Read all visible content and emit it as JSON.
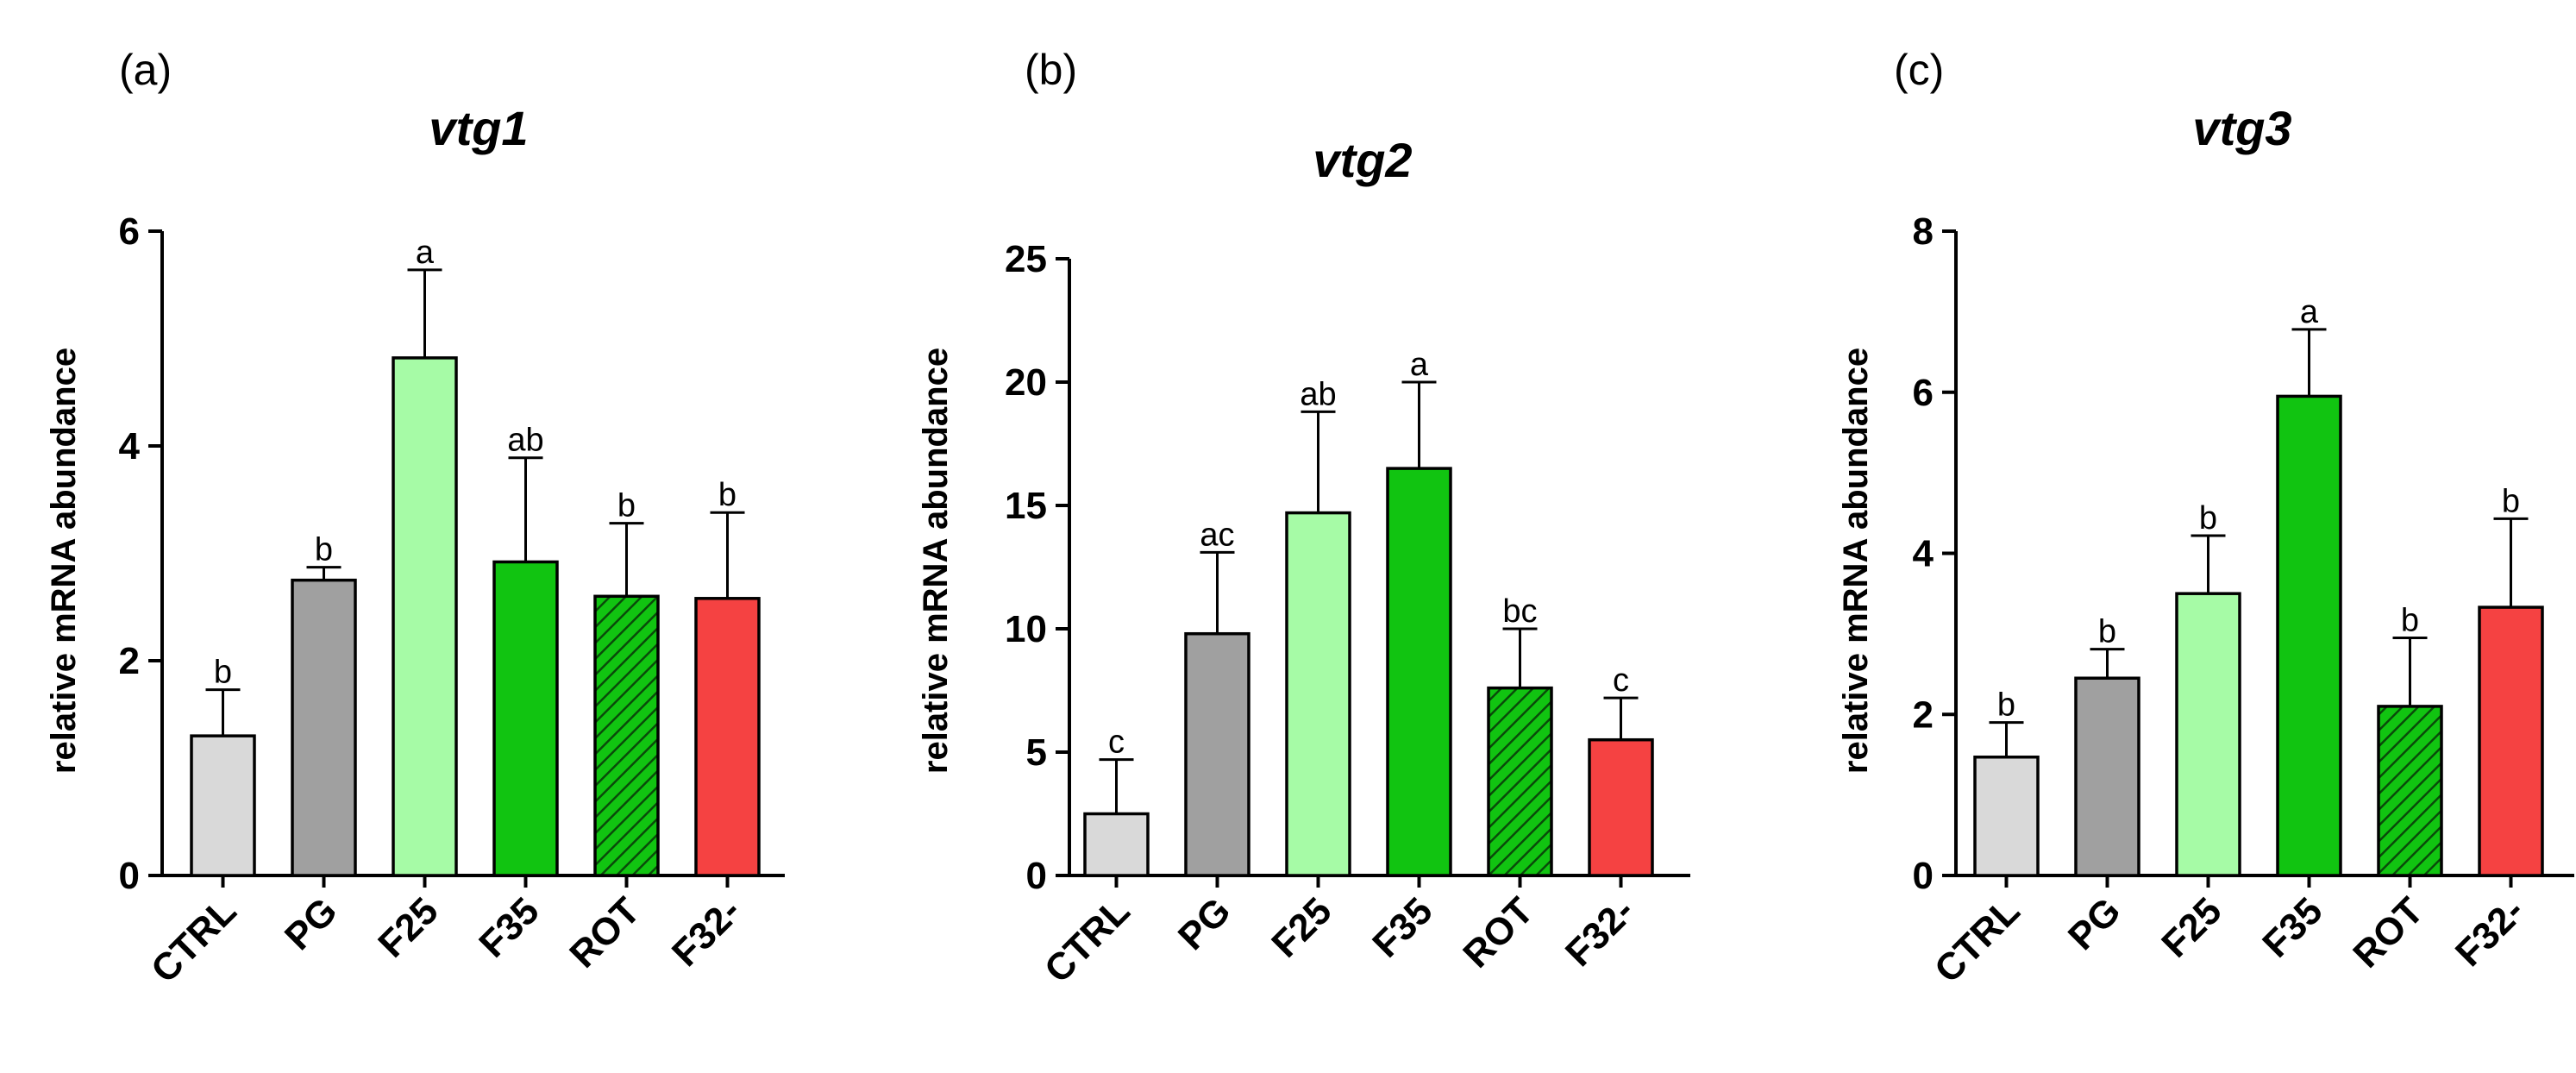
{
  "chart_data": [
    {
      "type": "bar",
      "panel_label": "(a)",
      "title": "vtg1",
      "xlabel": "",
      "ylabel": "relative mRNA abundance",
      "ylim": [
        0,
        6
      ],
      "yticks": [
        0,
        2,
        4,
        6
      ],
      "categories": [
        "CTRL",
        "PG",
        "F25",
        "F35",
        "ROT",
        "F32-"
      ],
      "values": [
        1.3,
        2.75,
        4.82,
        2.92,
        2.6,
        2.58
      ],
      "errors": [
        0.43,
        0.12,
        0.82,
        0.97,
        0.68,
        0.8
      ],
      "significance": [
        "b",
        "b",
        "a",
        "ab",
        "b",
        "b"
      ],
      "colors": [
        "#d9d9d9",
        "#a0a0a0",
        "#a6fba6",
        "#11c411",
        "#11c411",
        "#f54242"
      ],
      "hatched": [
        false,
        false,
        false,
        false,
        true,
        false
      ]
    },
    {
      "type": "bar",
      "panel_label": "(b)",
      "title": "vtg2",
      "xlabel": "",
      "ylabel": "relative mRNA abundance",
      "ylim": [
        0,
        25
      ],
      "yticks": [
        0,
        5,
        10,
        15,
        20,
        25
      ],
      "categories": [
        "CTRL",
        "PG",
        "F25",
        "F35",
        "ROT",
        "F32-"
      ],
      "values": [
        2.5,
        9.8,
        14.7,
        16.5,
        7.6,
        5.5
      ],
      "errors": [
        2.2,
        3.3,
        4.1,
        3.5,
        2.4,
        1.7
      ],
      "significance": [
        "c",
        "ac",
        "ab",
        "a",
        "bc",
        "c"
      ],
      "colors": [
        "#d9d9d9",
        "#a0a0a0",
        "#a6fba6",
        "#11c411",
        "#11c411",
        "#f54242"
      ],
      "hatched": [
        false,
        false,
        false,
        false,
        true,
        false
      ]
    },
    {
      "type": "bar",
      "panel_label": "(c)",
      "title": "vtg3",
      "xlabel": "",
      "ylabel": "relative mRNA abundance",
      "ylim": [
        0,
        8
      ],
      "yticks": [
        0,
        2,
        4,
        6,
        8
      ],
      "categories": [
        "CTRL",
        "PG",
        "F25",
        "F35",
        "ROT",
        "F32-"
      ],
      "values": [
        1.47,
        2.45,
        3.5,
        5.95,
        2.1,
        3.33
      ],
      "errors": [
        0.43,
        0.36,
        0.72,
        0.83,
        0.85,
        1.1
      ],
      "significance": [
        "b",
        "b",
        "b",
        "a",
        "b",
        "b"
      ],
      "colors": [
        "#d9d9d9",
        "#a0a0a0",
        "#a6fba6",
        "#11c411",
        "#11c411",
        "#f54242"
      ],
      "hatched": [
        false,
        false,
        false,
        false,
        true,
        false
      ]
    }
  ]
}
